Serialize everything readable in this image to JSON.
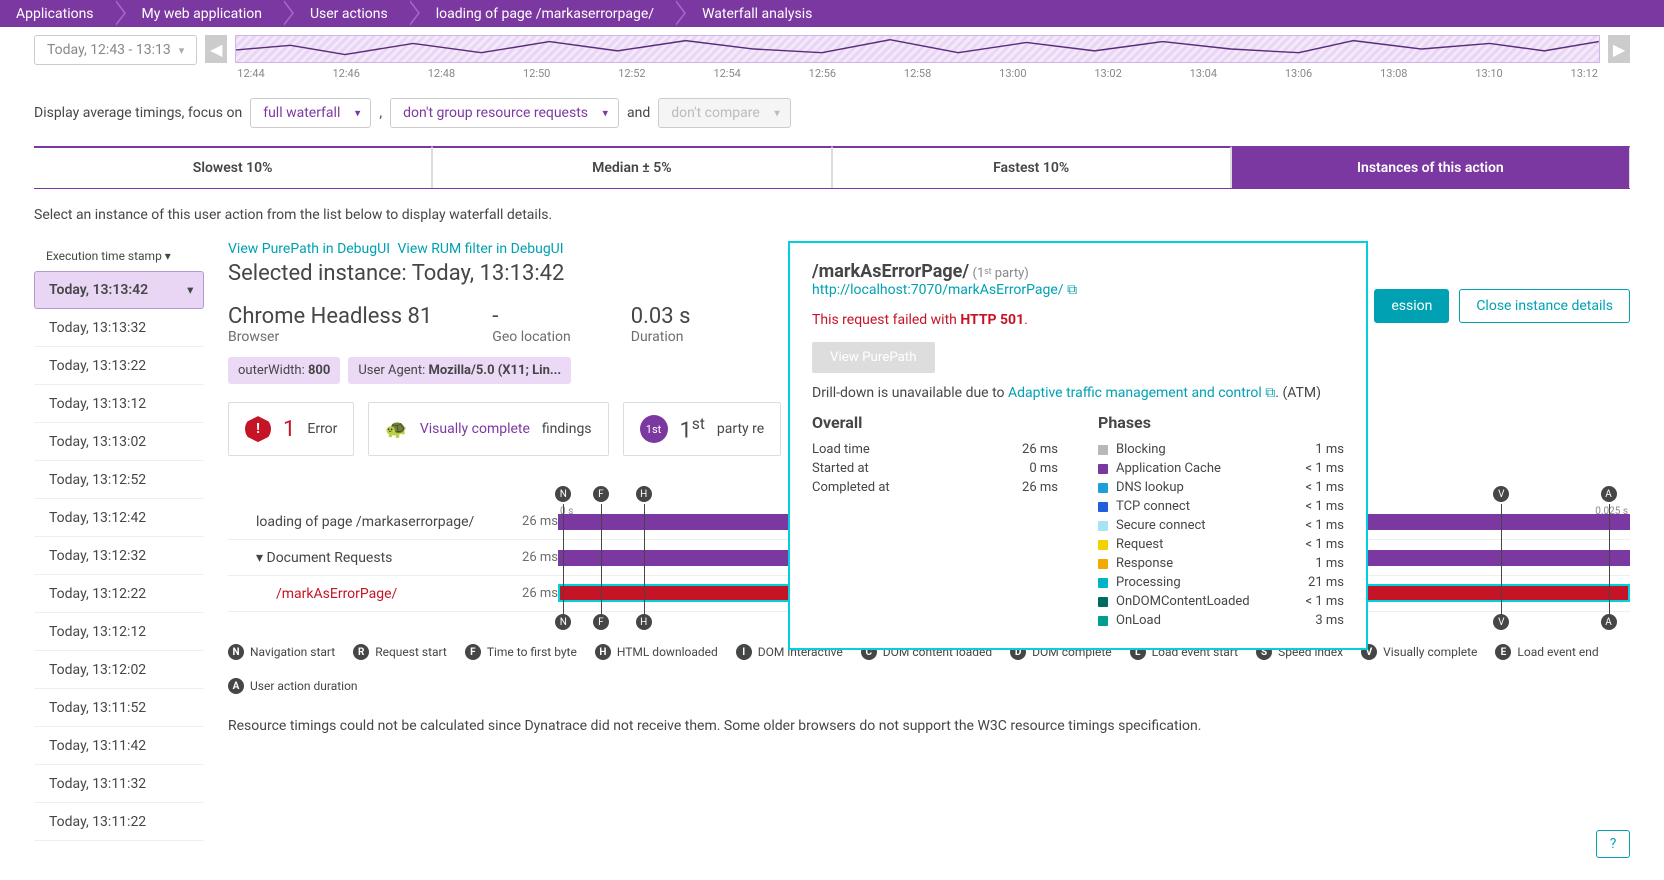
{
  "breadcrumb": [
    "Applications",
    "My web application",
    "User actions",
    "loading of page /markaserrorpage/",
    "Waterfall analysis"
  ],
  "time_pill": "Today, 12:43 - 13:13",
  "spark_ticks": [
    "12:44",
    "12:46",
    "12:48",
    "12:50",
    "12:52",
    "12:54",
    "12:56",
    "12:58",
    "13:00",
    "13:02",
    "13:04",
    "13:06",
    "13:08",
    "13:10",
    "13:12"
  ],
  "filters": {
    "prefix": "Display average timings, focus on",
    "sel1": "full waterfall",
    "sel2": "don't group resource requests",
    "and": "and",
    "sel3": "don't compare"
  },
  "tabs": [
    "Slowest 10%",
    "Median ± 5%",
    "Fastest 10%",
    "Instances of this action"
  ],
  "active_tab": 3,
  "instruction": "Select an instance of this user action from the list below to display waterfall details.",
  "left_header": "Execution time stamp ▾",
  "timestamps": [
    "Today, 13:13:42",
    "Today, 13:13:32",
    "Today, 13:13:22",
    "Today, 13:13:12",
    "Today, 13:13:02",
    "Today, 13:12:52",
    "Today, 13:12:42",
    "Today, 13:12:32",
    "Today, 13:12:22",
    "Today, 13:12:12",
    "Today, 13:12:02",
    "Today, 13:11:52",
    "Today, 13:11:42",
    "Today, 13:11:32",
    "Today, 13:11:22"
  ],
  "selected_ts": 0,
  "links": {
    "purepath": "View PurePath in DebugUI",
    "rum": "View RUM filter in DebugUI"
  },
  "selected_instance_label": "Selected instance: Today, 13:13:42",
  "meta": [
    {
      "big": "Chrome Headless 81",
      "lbl": "Browser"
    },
    {
      "big": "-",
      "lbl": "Geo location"
    },
    {
      "big": "0.03 s",
      "lbl": "Duration"
    }
  ],
  "chips": [
    {
      "k": "outerWidth:",
      "v": "800"
    },
    {
      "k": "User Agent:",
      "v": "Mozilla/5.0 (X11; Lin..."
    }
  ],
  "cards": {
    "error": {
      "num": "1",
      "txt": "Error"
    },
    "vc": {
      "link": "Visually complete",
      "txt": "findings"
    },
    "party": {
      "num": "1",
      "sup": "st",
      "txt": "party re"
    }
  },
  "right_buttons": {
    "session": "ession",
    "close": "Close instance details"
  },
  "waterfall": {
    "rows": [
      {
        "name": "loading of page /markaserrorpage/",
        "dur": "26 ms",
        "err": false,
        "indent": 0
      },
      {
        "name": "Document Requests",
        "dur": "26 ms",
        "err": false,
        "indent": 0,
        "expand": true
      },
      {
        "name": "/markAsErrorPage/",
        "dur": "26 ms",
        "err": true,
        "indent": 1
      }
    ],
    "bar_color": "#7c38a1",
    "scale_labels": [
      "0 s",
      "0.025 s"
    ],
    "markers_top": [
      "N",
      "F",
      "H",
      "V",
      "A"
    ],
    "markers_pos": [
      0.5,
      4,
      8,
      88,
      98
    ]
  },
  "legend": [
    {
      "c": "N",
      "t": "Navigation start"
    },
    {
      "c": "R",
      "t": "Request start"
    },
    {
      "c": "F",
      "t": "Time to first byte"
    },
    {
      "c": "H",
      "t": "HTML downloaded"
    },
    {
      "c": "I",
      "t": "DOM interactive"
    },
    {
      "c": "C",
      "t": "DOM content loaded"
    },
    {
      "c": "D",
      "t": "DOM complete"
    },
    {
      "c": "L",
      "t": "Load event start"
    },
    {
      "c": "S",
      "t": "Speed index"
    },
    {
      "c": "V",
      "t": "Visually complete"
    },
    {
      "c": "E",
      "t": "Load event end"
    },
    {
      "c": "A",
      "t": "User action duration"
    }
  ],
  "foot_note": "Resource timings could not be calculated since Dynatrace did not receive them. Some older browsers do not support the W3C resource timings specification.",
  "popover": {
    "title": "/markAsErrorPage/",
    "party": "(1ˢᵗ party)",
    "url": "http://localhost:7070/markAsErrorPage/",
    "fail_pre": "This request failed with ",
    "fail_code": "HTTP 501",
    "view_purepath": "View PurePath",
    "drill_pre": "Drill-down is unavailable due to ",
    "drill_link": "Adaptive traffic management and control",
    "drill_post": ". (ATM)",
    "overall_h": "Overall",
    "overall": [
      {
        "k": "Load time",
        "v": "26 ms"
      },
      {
        "k": "Started at",
        "v": "0 ms"
      },
      {
        "k": "Completed at",
        "v": "26 ms"
      }
    ],
    "phases_h": "Phases",
    "phases": [
      {
        "c": "#b8b8b8",
        "k": "Blocking",
        "v": "1 ms"
      },
      {
        "c": "#7c38a1",
        "k": "Application Cache",
        "v": "< 1 ms"
      },
      {
        "c": "#1f9ede",
        "k": "DNS lookup",
        "v": "< 1 ms"
      },
      {
        "c": "#1f5fde",
        "k": "TCP connect",
        "v": "< 1 ms"
      },
      {
        "c": "#a7e3f2",
        "k": "Secure connect",
        "v": "< 1 ms"
      },
      {
        "c": "#f2d200",
        "k": "Request",
        "v": "< 1 ms"
      },
      {
        "c": "#f2a900",
        "k": "Response",
        "v": "1 ms"
      },
      {
        "c": "#00b4c8",
        "k": "Processing",
        "v": "21 ms"
      },
      {
        "c": "#006b5f",
        "k": "OnDOMContentLoaded",
        "v": "< 1 ms"
      },
      {
        "c": "#009e8f",
        "k": "OnLoad",
        "v": "3 ms"
      }
    ]
  },
  "help": "?"
}
